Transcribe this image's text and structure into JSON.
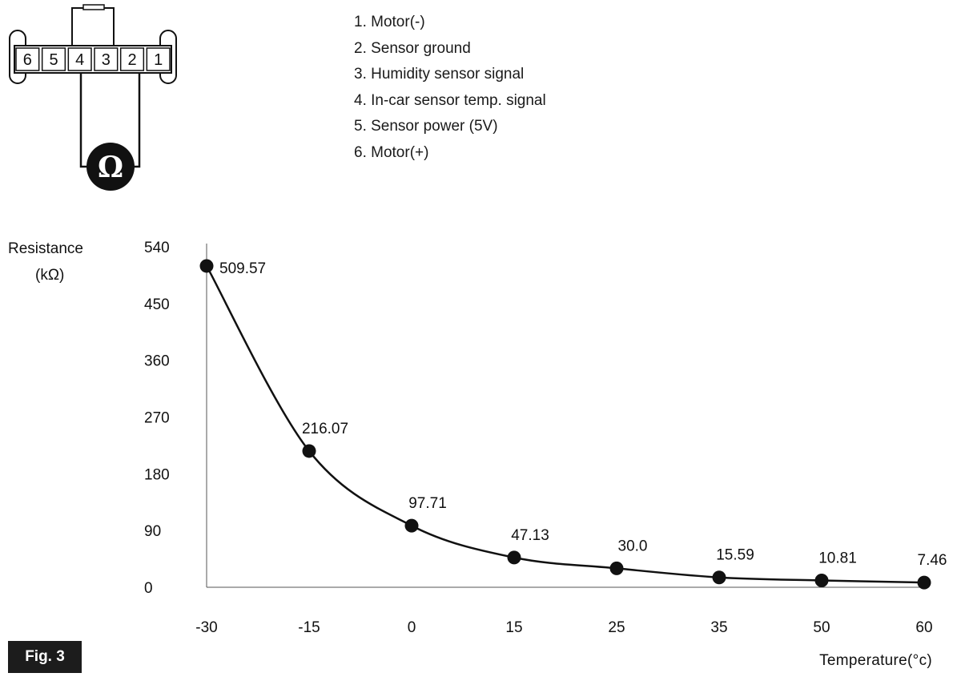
{
  "connector": {
    "pins": [
      "6",
      "5",
      "4",
      "3",
      "2",
      "1"
    ],
    "meter_symbol": "Ω",
    "meter_icon": "ohmmeter-icon"
  },
  "pin_legend": [
    "1. Motor(-)",
    "2. Sensor ground",
    "3. Humidity sensor signal",
    "4. In-car sensor temp. signal",
    "5. Sensor power (5V)",
    "6. Motor(+)"
  ],
  "figure_label": "Fig. 3",
  "chart_data": {
    "type": "line",
    "xlabel": "Temperature(°c)",
    "ylabel_line1": "Resistance",
    "ylabel_line2": "(kΩ)",
    "ylim": [
      0,
      540
    ],
    "yticks": [
      0,
      90,
      180,
      270,
      360,
      450,
      540
    ],
    "xticks": [
      "-30",
      "-15",
      "0",
      "15",
      "25",
      "35",
      "50",
      "60"
    ],
    "grid": false,
    "series": [
      {
        "x": [
          -30,
          -15,
          0,
          15,
          25,
          35,
          50,
          60
        ],
        "values": [
          509.57,
          216.07,
          97.71,
          47.13,
          30.0,
          15.59,
          10.81,
          7.46
        ],
        "labels": [
          "509.57",
          "216.07",
          "97.71",
          "47.13",
          "30.0",
          "15.59",
          "10.81",
          "7.46"
        ]
      }
    ],
    "line_color": "#111111"
  }
}
